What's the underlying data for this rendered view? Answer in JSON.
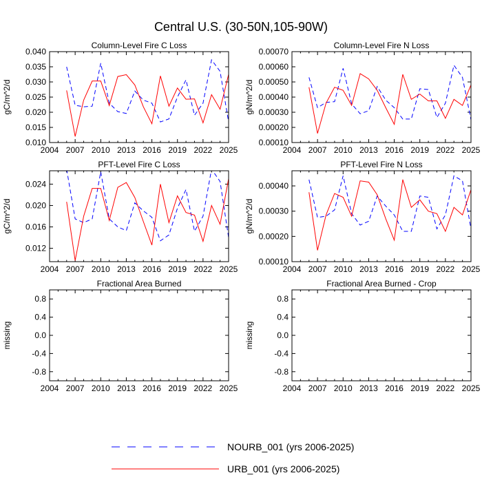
{
  "figure": {
    "title": "Central U.S. (30-50N,105-90W)"
  },
  "legend": {
    "placement": "bottom-center",
    "entries": [
      {
        "name": "NOURB_001 (yrs 2006-2025)",
        "color": "#0000ff",
        "dash": "dashed"
      },
      {
        "name": "URB_001 (yrs 2006-2025)",
        "color": "#ff0000",
        "dash": "solid"
      }
    ]
  },
  "chart_data": [
    {
      "type": "line",
      "title": "Column-Level Fire C Loss",
      "ylabel": "gC/m^2/d",
      "xlim": [
        2004,
        2025
      ],
      "ylim": [
        0.01,
        0.04
      ],
      "xticks": [
        2004,
        2007,
        2010,
        2013,
        2016,
        2019,
        2022,
        2025
      ],
      "yticks": [
        0.01,
        0.015,
        0.02,
        0.025,
        0.03,
        0.035,
        0.04
      ],
      "ytick_labels": [
        "0.010",
        "0.015",
        "0.020",
        "0.025",
        "0.030",
        "0.035",
        "0.040"
      ],
      "x": [
        2006,
        2007,
        2008,
        2009,
        2010,
        2011,
        2012,
        2013,
        2014,
        2015,
        2016,
        2017,
        2018,
        2019,
        2020,
        2021,
        2022,
        2023,
        2024,
        2025
      ],
      "series": [
        {
          "name": "NOURB_001 (yrs 2006-2025)",
          "color": "#0000ff",
          "dash": "dashed",
          "values": [
            0.035,
            0.0223,
            0.0218,
            0.022,
            0.0362,
            0.023,
            0.0202,
            0.0196,
            0.027,
            0.024,
            0.023,
            0.0168,
            0.0178,
            0.025,
            0.0307,
            0.019,
            0.023,
            0.0373,
            0.0335,
            0.0168
          ]
        },
        {
          "name": "URB_001 (yrs 2006-2025)",
          "color": "#ff0000",
          "dash": "solid",
          "values": [
            0.0272,
            0.012,
            0.024,
            0.0303,
            0.0303,
            0.0222,
            0.0318,
            0.0324,
            0.029,
            0.0218,
            0.0162,
            0.032,
            0.022,
            0.028,
            0.0243,
            0.0244,
            0.0165,
            0.0258,
            0.021,
            0.0325
          ]
        }
      ]
    },
    {
      "type": "line",
      "title": "Column-Level Fire N Loss",
      "ylabel": "gN/m^2/d",
      "xlim": [
        2004,
        2025
      ],
      "ylim": [
        0.0001,
        0.0007
      ],
      "xticks": [
        2004,
        2007,
        2010,
        2013,
        2016,
        2019,
        2022,
        2025
      ],
      "yticks": [
        0.0001,
        0.0002,
        0.0003,
        0.0004,
        0.0005,
        0.0006,
        0.0007
      ],
      "ytick_labels": [
        "0.00010",
        "0.00020",
        "0.00030",
        "0.00040",
        "0.00050",
        "0.00060",
        "0.00070"
      ],
      "x": [
        2006,
        2007,
        2008,
        2009,
        2010,
        2011,
        2012,
        2013,
        2014,
        2015,
        2016,
        2017,
        2018,
        2019,
        2020,
        2021,
        2022,
        2023,
        2024,
        2025
      ],
      "series": [
        {
          "name": "NOURB_001 (yrs 2006-2025)",
          "color": "#0000ff",
          "dash": "dashed",
          "values": [
            0.00053,
            0.00033,
            0.000365,
            0.00037,
            0.00059,
            0.000355,
            0.00029,
            0.00031,
            0.00047,
            0.00038,
            0.00033,
            0.000255,
            0.000255,
            0.000455,
            0.00045,
            0.000265,
            0.00036,
            0.00061,
            0.00053,
            0.00025
          ]
        },
        {
          "name": "URB_001 (yrs 2006-2025)",
          "color": "#ff0000",
          "dash": "solid",
          "values": [
            0.000465,
            0.00016,
            0.00036,
            0.000465,
            0.000445,
            0.000345,
            0.000555,
            0.00052,
            0.000445,
            0.00033,
            0.00022,
            0.00055,
            0.000385,
            0.00042,
            0.000375,
            0.000375,
            0.00026,
            0.000385,
            0.000345,
            0.00048
          ]
        }
      ]
    },
    {
      "type": "line",
      "title": "PFT-Level Fire C Loss",
      "ylabel": "gC/m^2/d",
      "xlim": [
        2004,
        2025
      ],
      "ylim": [
        0.0095,
        0.0265
      ],
      "xticks": [
        2004,
        2007,
        2010,
        2013,
        2016,
        2019,
        2022,
        2025
      ],
      "yticks": [
        0.012,
        0.016,
        0.02,
        0.024
      ],
      "ytick_labels": [
        "0.012",
        "0.016",
        "0.020",
        "0.024"
      ],
      "x": [
        2006,
        2007,
        2008,
        2009,
        2010,
        2011,
        2012,
        2013,
        2014,
        2015,
        2016,
        2017,
        2018,
        2019,
        2020,
        2021,
        2022,
        2023,
        2024,
        2025
      ],
      "series": [
        {
          "name": "NOURB_001 (yrs 2006-2025)",
          "color": "#0000ff",
          "dash": "dashed",
          "values": [
            0.0268,
            0.0175,
            0.0168,
            0.0175,
            0.0263,
            0.0175,
            0.016,
            0.0153,
            0.0205,
            0.019,
            0.0178,
            0.0134,
            0.0145,
            0.0195,
            0.023,
            0.0152,
            0.018,
            0.0268,
            0.0245,
            0.014
          ]
        },
        {
          "name": "URB_001 (yrs 2006-2025)",
          "color": "#ff0000",
          "dash": "solid",
          "values": [
            0.0207,
            0.0097,
            0.018,
            0.0232,
            0.0232,
            0.0172,
            0.0234,
            0.0243,
            0.0215,
            0.017,
            0.0126,
            0.024,
            0.0168,
            0.0218,
            0.0187,
            0.0182,
            0.0133,
            0.02,
            0.0165,
            0.025
          ]
        }
      ]
    },
    {
      "type": "line",
      "title": "PFT-Level Fire N Loss",
      "ylabel": "gN/m^2/d",
      "xlim": [
        2004,
        2025
      ],
      "ylim": [
        0.0001,
        0.00046
      ],
      "xticks": [
        2004,
        2007,
        2010,
        2013,
        2016,
        2019,
        2022,
        2025
      ],
      "yticks": [
        0.0001,
        0.0002,
        0.0003,
        0.0004
      ],
      "ytick_labels": [
        "0.00010",
        "0.00020",
        "0.00030",
        "0.00040"
      ],
      "x": [
        2006,
        2007,
        2008,
        2009,
        2010,
        2011,
        2012,
        2013,
        2014,
        2015,
        2016,
        2017,
        2018,
        2019,
        2020,
        2021,
        2022,
        2023,
        2024,
        2025
      ],
      "series": [
        {
          "name": "NOURB_001 (yrs 2006-2025)",
          "color": "#0000ff",
          "dash": "dashed",
          "values": [
            0.000425,
            0.000275,
            0.00028,
            0.000305,
            0.00044,
            0.00029,
            0.000245,
            0.00026,
            0.00036,
            0.00032,
            0.000285,
            0.00022,
            0.00022,
            0.00036,
            0.000355,
            0.00023,
            0.000285,
            0.00044,
            0.00042,
            0.00023
          ]
        },
        {
          "name": "URB_001 (yrs 2006-2025)",
          "color": "#ff0000",
          "dash": "solid",
          "values": [
            0.000375,
            0.000145,
            0.000285,
            0.00037,
            0.000355,
            0.00028,
            0.00042,
            0.000415,
            0.000365,
            0.00027,
            0.000185,
            0.000425,
            0.000315,
            0.000345,
            0.0003,
            0.00029,
            0.00022,
            0.000315,
            0.000285,
            0.000385
          ]
        }
      ]
    },
    {
      "type": "line",
      "title": "Fractional Area Burned",
      "ylabel": "missing",
      "xlim": [
        2004,
        2025
      ],
      "ylim": [
        -1.0,
        1.0
      ],
      "xticks": [
        2004,
        2007,
        2010,
        2013,
        2016,
        2019,
        2022,
        2025
      ],
      "yticks": [
        -0.8,
        -0.4,
        0.0,
        0.4,
        0.8
      ],
      "ytick_labels": [
        "-0.8",
        "-0.4",
        "0.0",
        "0.4",
        "0.8"
      ],
      "x": [],
      "series": []
    },
    {
      "type": "line",
      "title": "Fractional Area Burned - Crop",
      "ylabel": "missing",
      "xlim": [
        2004,
        2025
      ],
      "ylim": [
        -1.0,
        1.0
      ],
      "xticks": [
        2004,
        2007,
        2010,
        2013,
        2016,
        2019,
        2022,
        2025
      ],
      "yticks": [
        -0.8,
        -0.4,
        0.0,
        0.4,
        0.8
      ],
      "ytick_labels": [
        "-0.8",
        "-0.4",
        "0.0",
        "0.4",
        "0.8"
      ],
      "x": [],
      "series": []
    }
  ]
}
